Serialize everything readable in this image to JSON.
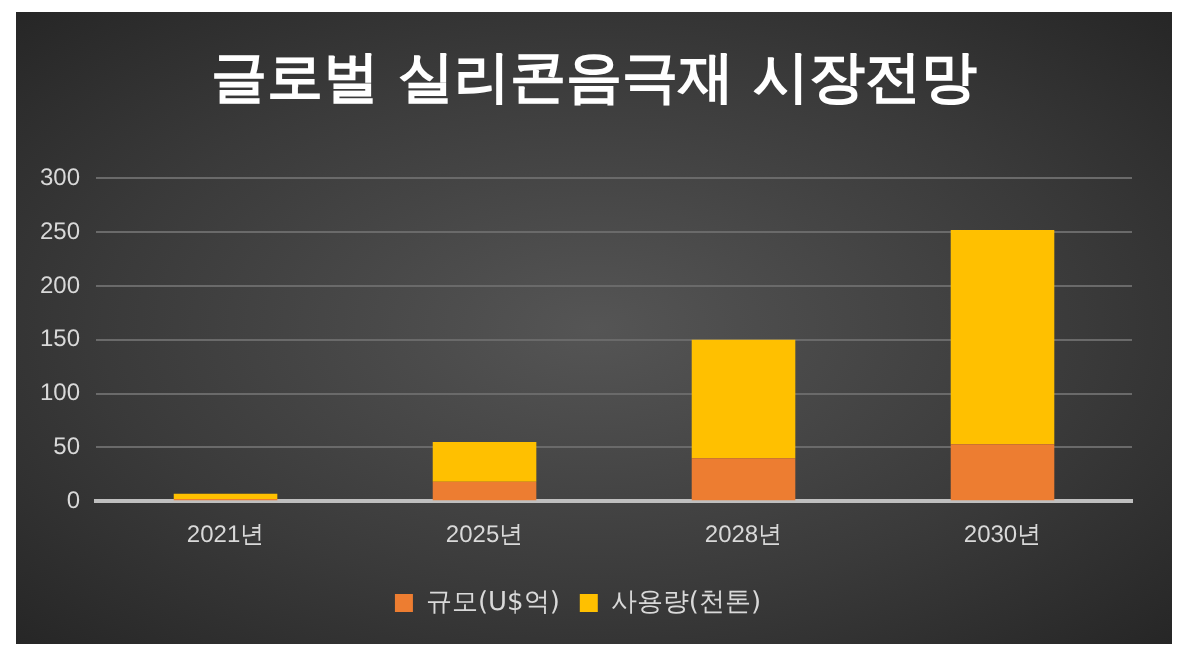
{
  "chart_data": {
    "type": "bar",
    "title": "글로벌 실리콘음극재 시장전망",
    "categories": [
      "2021년",
      "2025년",
      "2028년",
      "2030년"
    ],
    "series": [
      {
        "name": "규모(U$억)",
        "color": "#ed7d31",
        "values": [
          2,
          18,
          40,
          53
        ]
      },
      {
        "name": "사용량(천톤)",
        "color": "#ffc000",
        "values": [
          5,
          37,
          110,
          199
        ]
      }
    ],
    "stacked": true,
    "ylim": [
      0,
      300
    ],
    "yticks": [
      0,
      50,
      100,
      150,
      200,
      250,
      300
    ],
    "grid": "y",
    "legend": "bottom"
  }
}
